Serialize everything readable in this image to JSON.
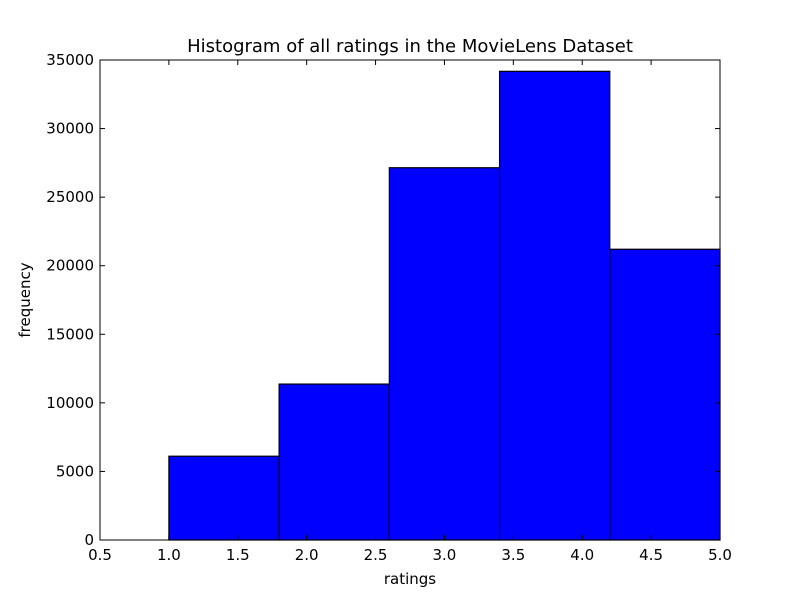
{
  "chart_data": {
    "type": "bar",
    "title": "Histogram of all ratings in the MovieLens Dataset",
    "xlabel": "ratings",
    "ylabel": "frequency",
    "xlim": [
      0.5,
      5.0
    ],
    "ylim": [
      0,
      35000
    ],
    "x_ticks": [
      "0.5",
      "1.0",
      "1.5",
      "2.0",
      "2.5",
      "3.0",
      "3.5",
      "4.0",
      "4.5",
      "5.0"
    ],
    "y_ticks": [
      "0",
      "5000",
      "10000",
      "15000",
      "20000",
      "25000",
      "30000",
      "35000"
    ],
    "bins": [
      {
        "x0": 1.0,
        "x1": 1.8,
        "value": 6110
      },
      {
        "x0": 1.8,
        "x1": 2.6,
        "value": 11370
      },
      {
        "x0": 2.6,
        "x1": 3.4,
        "value": 27145
      },
      {
        "x0": 3.4,
        "x1": 4.2,
        "value": 34174
      },
      {
        "x0": 4.2,
        "x1": 5.0,
        "value": 21201
      }
    ],
    "bar_color": "#0000ff",
    "edge_color": "#000000",
    "grid": false,
    "legend": "none"
  }
}
